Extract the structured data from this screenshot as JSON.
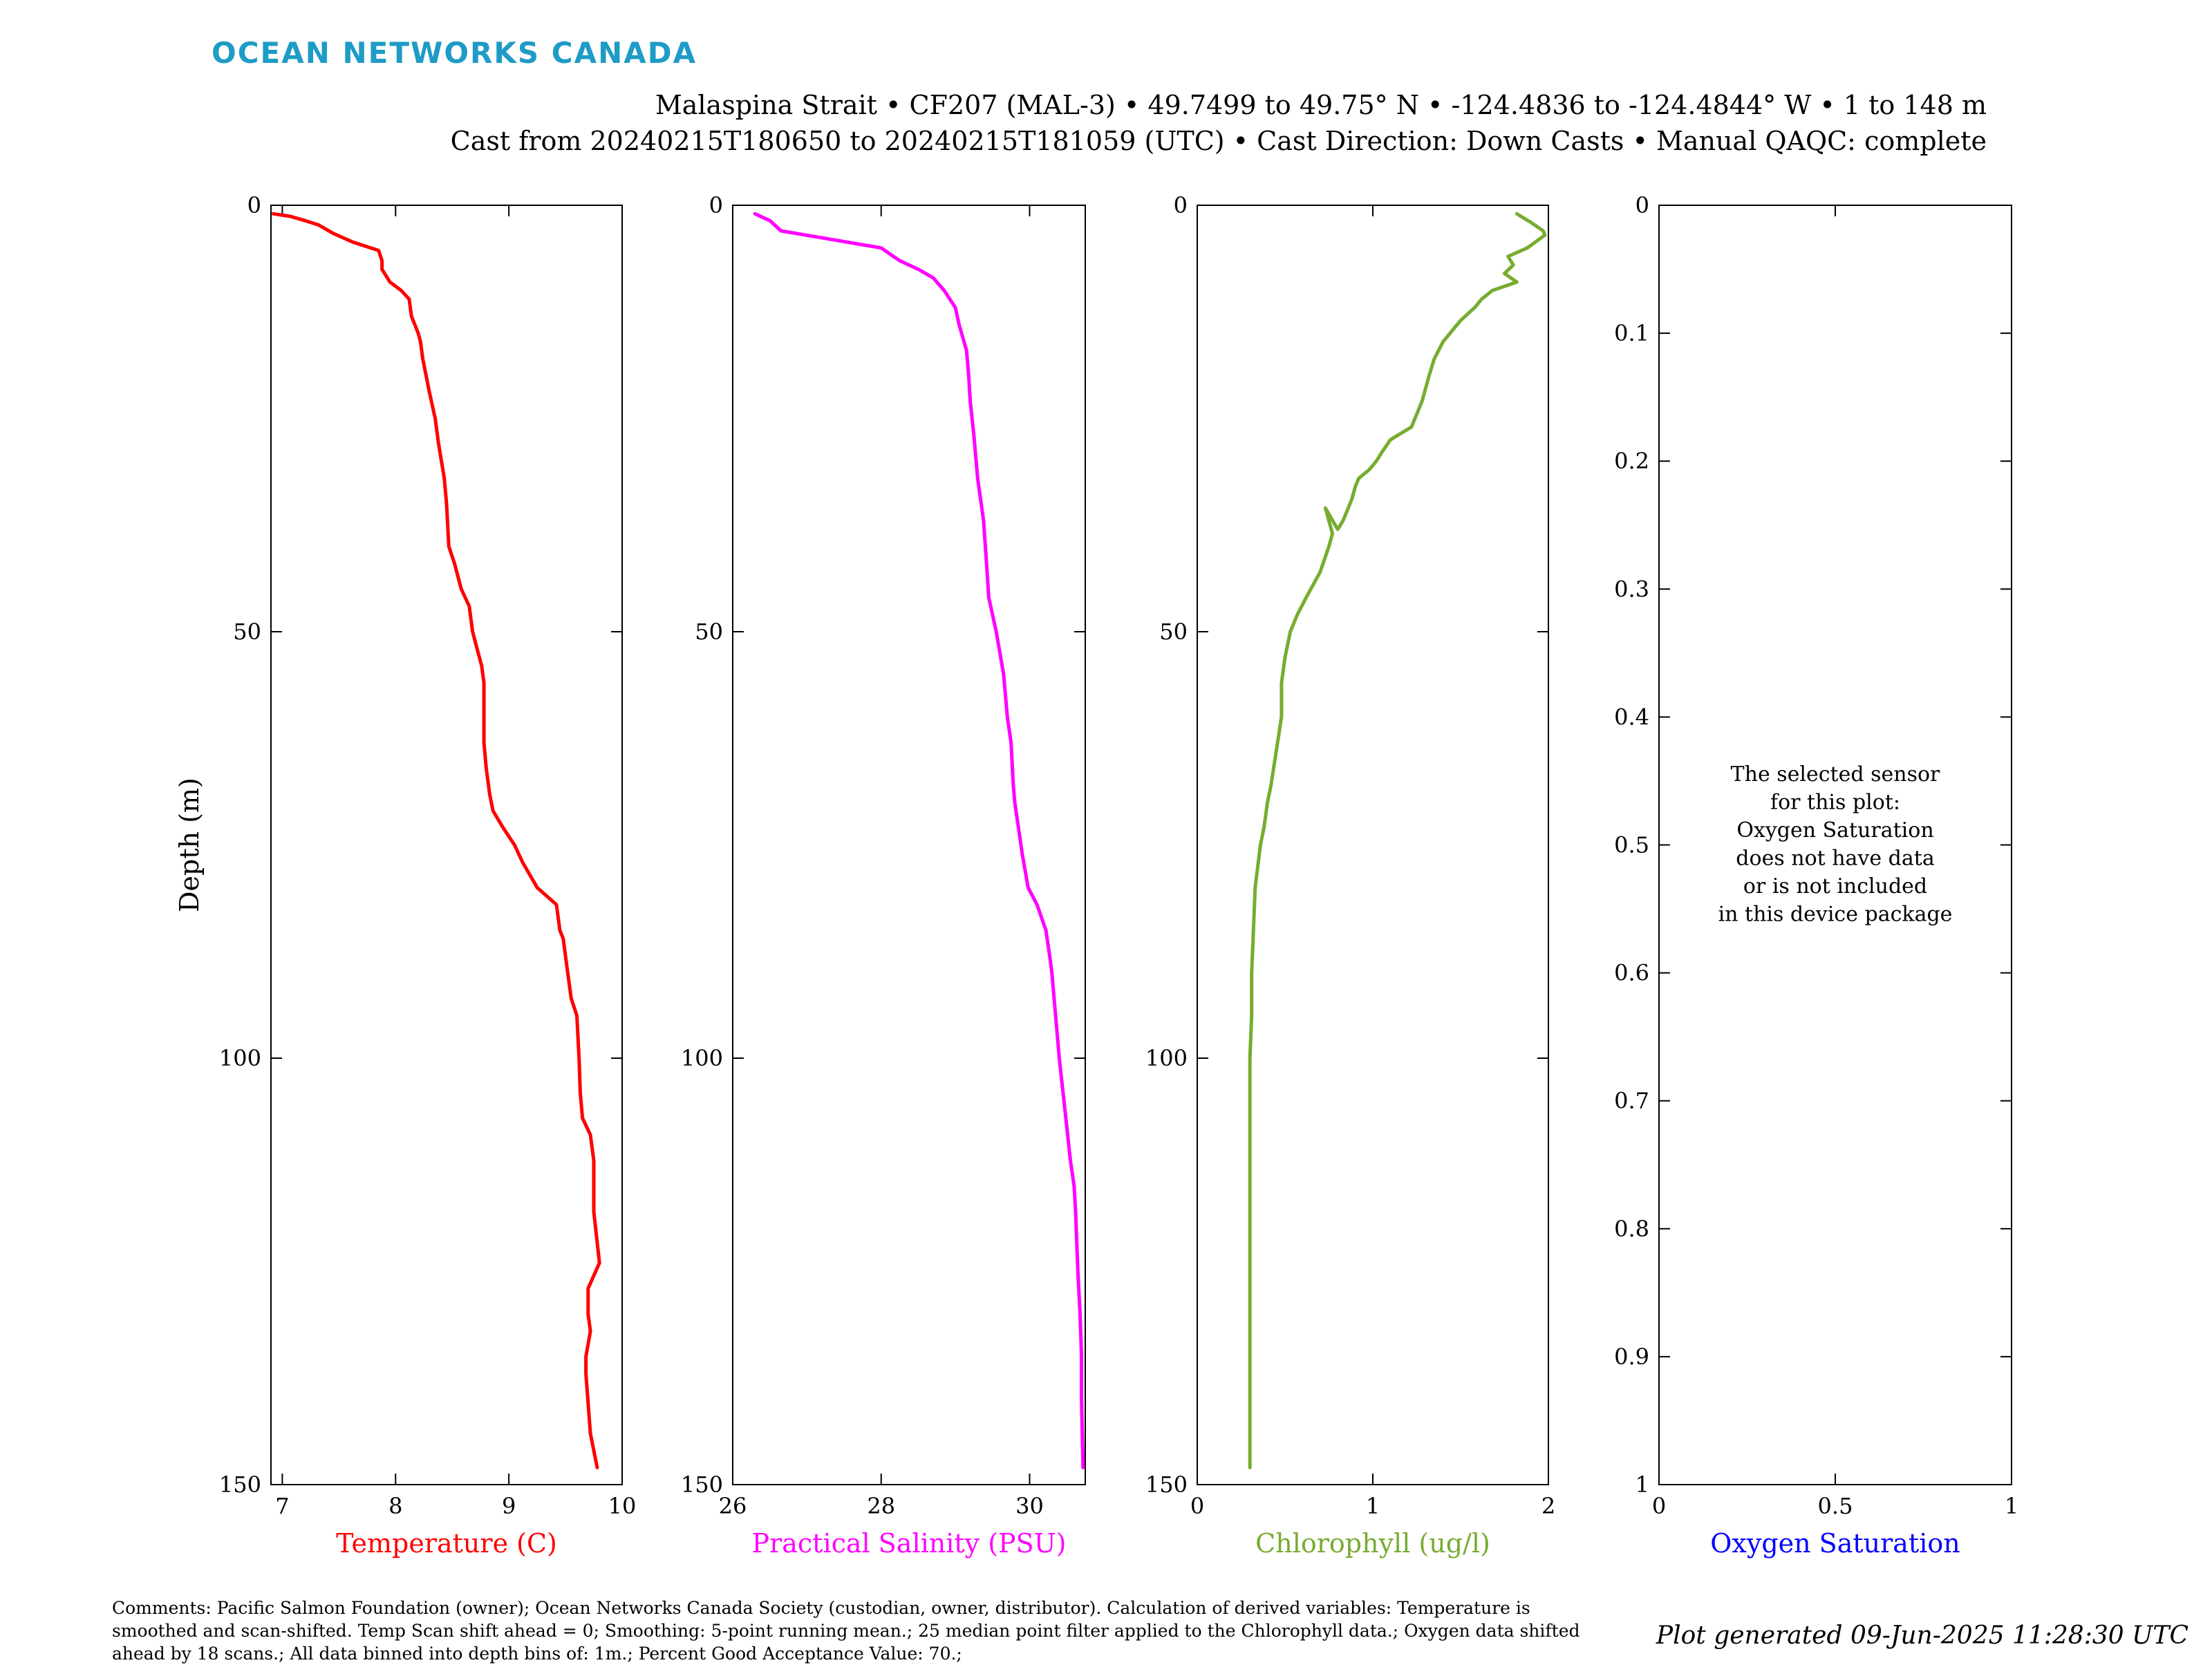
{
  "brand": "OCEAN NETWORKS CANADA",
  "header": {
    "line1": "Malaspina Strait • CF207 (MAL-3) • 49.7499 to 49.75° N • -124.4836 to -124.4844° W • 1 to 148 m",
    "line2": "Cast from 20240215T180650 to 20240215T181059 (UTC) • Cast Direction: Down Casts • Manual QAQC: complete"
  },
  "comments": "Comments: Pacific Salmon Foundation (owner); Ocean Networks Canada Society (custodian, owner, distributor). Calculation of derived variables: Temperature is smoothed and scan-shifted. Temp Scan shift ahead = 0; Smoothing: 5-point running mean.; 25 median point filter applied to the Chlorophyll data.; Oxygen data shifted ahead by 18 scans.; All data binned into depth bins of: 1m.; Percent Good Acceptance Value: 70.;",
  "generated": "Plot generated 09-Jun-2025 11:28:30 UTC",
  "colors": {
    "temperature": "#ff0000",
    "salinity": "#ff00ff",
    "chlorophyll": "#77ac30",
    "oxygen": "#0000ff"
  },
  "chart_data": [
    {
      "type": "line",
      "xlabel": "Temperature (C)",
      "ylabel": "Depth (m)",
      "xlim": [
        6.9,
        10
      ],
      "ylim": [
        0,
        150
      ],
      "y_reversed": true,
      "xticks": [
        7,
        8,
        9,
        10
      ],
      "yticks": [
        0,
        50,
        100,
        150
      ],
      "series": [
        {
          "x": [
            6.92,
            7.07,
            7.2,
            7.32,
            7.45,
            7.62,
            7.85,
            7.88,
            7.88,
            7.95,
            8.05,
            8.12,
            8.14,
            8.2,
            8.22,
            8.24,
            8.3,
            8.35,
            8.38,
            8.43,
            8.45,
            8.47,
            8.52,
            8.58,
            8.65,
            8.68,
            8.72,
            8.76,
            8.78,
            8.78,
            8.8,
            8.83,
            8.86,
            8.95,
            9.05,
            9.12,
            9.25,
            9.42,
            9.45,
            9.48,
            9.52,
            9.55,
            9.6,
            9.62,
            9.63,
            9.65,
            9.72,
            9.75,
            9.75,
            9.75,
            9.8,
            9.7,
            9.7,
            9.72,
            9.68,
            9.68,
            9.72,
            9.78
          ],
          "y": [
            1,
            1.3,
            1.8,
            2.3,
            3.3,
            4.3,
            5.3,
            6.5,
            7.5,
            9,
            10,
            11,
            13,
            15,
            16,
            18,
            22,
            25,
            28,
            32,
            35,
            40,
            42,
            45,
            47,
            50,
            52,
            54,
            56,
            63,
            66,
            69,
            71,
            73,
            75,
            77,
            80,
            82,
            85,
            86,
            90,
            93,
            95,
            100,
            104,
            107,
            109,
            112,
            115,
            118,
            124,
            127,
            130,
            132,
            135,
            137,
            144,
            148
          ]
        }
      ]
    },
    {
      "type": "line",
      "xlabel": "Practical Salinity (PSU)",
      "ylabel": "",
      "xlim": [
        26,
        30.75
      ],
      "ylim": [
        0,
        150
      ],
      "y_reversed": true,
      "xticks": [
        26,
        28,
        30
      ],
      "yticks": [
        0,
        50,
        100,
        150
      ],
      "series": [
        {
          "x": [
            26.3,
            26.5,
            26.65,
            28.0,
            28.25,
            28.5,
            28.7,
            28.85,
            29.0,
            29.05,
            29.1,
            29.15,
            29.18,
            29.2,
            29.25,
            29.3,
            29.38,
            29.42,
            29.45,
            29.55,
            29.65,
            29.7,
            29.75,
            29.78,
            29.8,
            29.85,
            29.9,
            29.98,
            30.1,
            30.22,
            30.27,
            30.3,
            30.35,
            30.4,
            30.45,
            30.5,
            30.55,
            30.6,
            30.62,
            30.65,
            30.68,
            30.7,
            30.7,
            30.72
          ],
          "y": [
            1,
            1.8,
            3,
            5,
            6.5,
            7.5,
            8.5,
            10,
            12,
            14,
            15.5,
            17,
            20,
            23,
            27,
            32,
            37,
            42,
            46,
            50,
            55,
            60,
            63,
            68,
            70,
            73,
            76,
            80,
            82,
            85,
            88,
            90,
            95,
            100,
            104,
            108,
            112,
            115,
            118,
            125,
            130,
            135,
            140,
            148
          ]
        }
      ]
    },
    {
      "type": "line",
      "xlabel": "Chlorophyll (ug/l)",
      "ylabel": "",
      "xlim": [
        0,
        2
      ],
      "ylim": [
        0,
        150
      ],
      "y_reversed": true,
      "xticks": [
        0,
        1,
        2
      ],
      "yticks": [
        0,
        50,
        100,
        150
      ],
      "series": [
        {
          "x": [
            1.82,
            1.9,
            1.97,
            1.98,
            1.88,
            1.77,
            1.8,
            1.75,
            1.82,
            1.68,
            1.62,
            1.58,
            1.5,
            1.4,
            1.35,
            1.32,
            1.28,
            1.22,
            1.1,
            1.05,
            1.02,
            0.98,
            0.92,
            0.9,
            0.88,
            0.85,
            0.83,
            0.8,
            0.73,
            0.77,
            0.75,
            0.7,
            0.62,
            0.57,
            0.53,
            0.5,
            0.48,
            0.48,
            0.45,
            0.42,
            0.4,
            0.38,
            0.36,
            0.33,
            0.32,
            0.31,
            0.31,
            0.3,
            0.3,
            0.3,
            0.3,
            0.3,
            0.3
          ],
          "y": [
            1,
            2,
            3,
            3.5,
            5,
            6,
            7,
            8,
            9,
            10,
            11,
            12,
            13.5,
            16,
            18,
            20,
            23,
            26,
            27.5,
            29,
            30,
            31,
            32,
            33,
            34.5,
            36,
            37,
            38,
            35.5,
            38.5,
            40,
            43,
            46,
            48,
            50,
            53,
            56,
            60,
            64,
            68,
            70,
            73,
            75,
            80,
            85,
            90,
            95,
            100,
            110,
            118,
            125,
            140,
            148
          ]
        }
      ]
    },
    {
      "type": "line",
      "xlabel": "Oxygen Saturation",
      "ylabel": "",
      "xlim": [
        0,
        1
      ],
      "ylim": [
        0,
        1
      ],
      "y_reversed": true,
      "xticks": [
        0,
        0.5,
        1
      ],
      "yticks": [
        0,
        0.1,
        0.2,
        0.3,
        0.4,
        0.5,
        0.6,
        0.7,
        0.8,
        0.9,
        1
      ],
      "annotation": [
        "The selected sensor",
        "for this plot:",
        "Oxygen Saturation",
        "does not have data",
        "or is not included",
        "in this device package"
      ],
      "series": []
    }
  ]
}
